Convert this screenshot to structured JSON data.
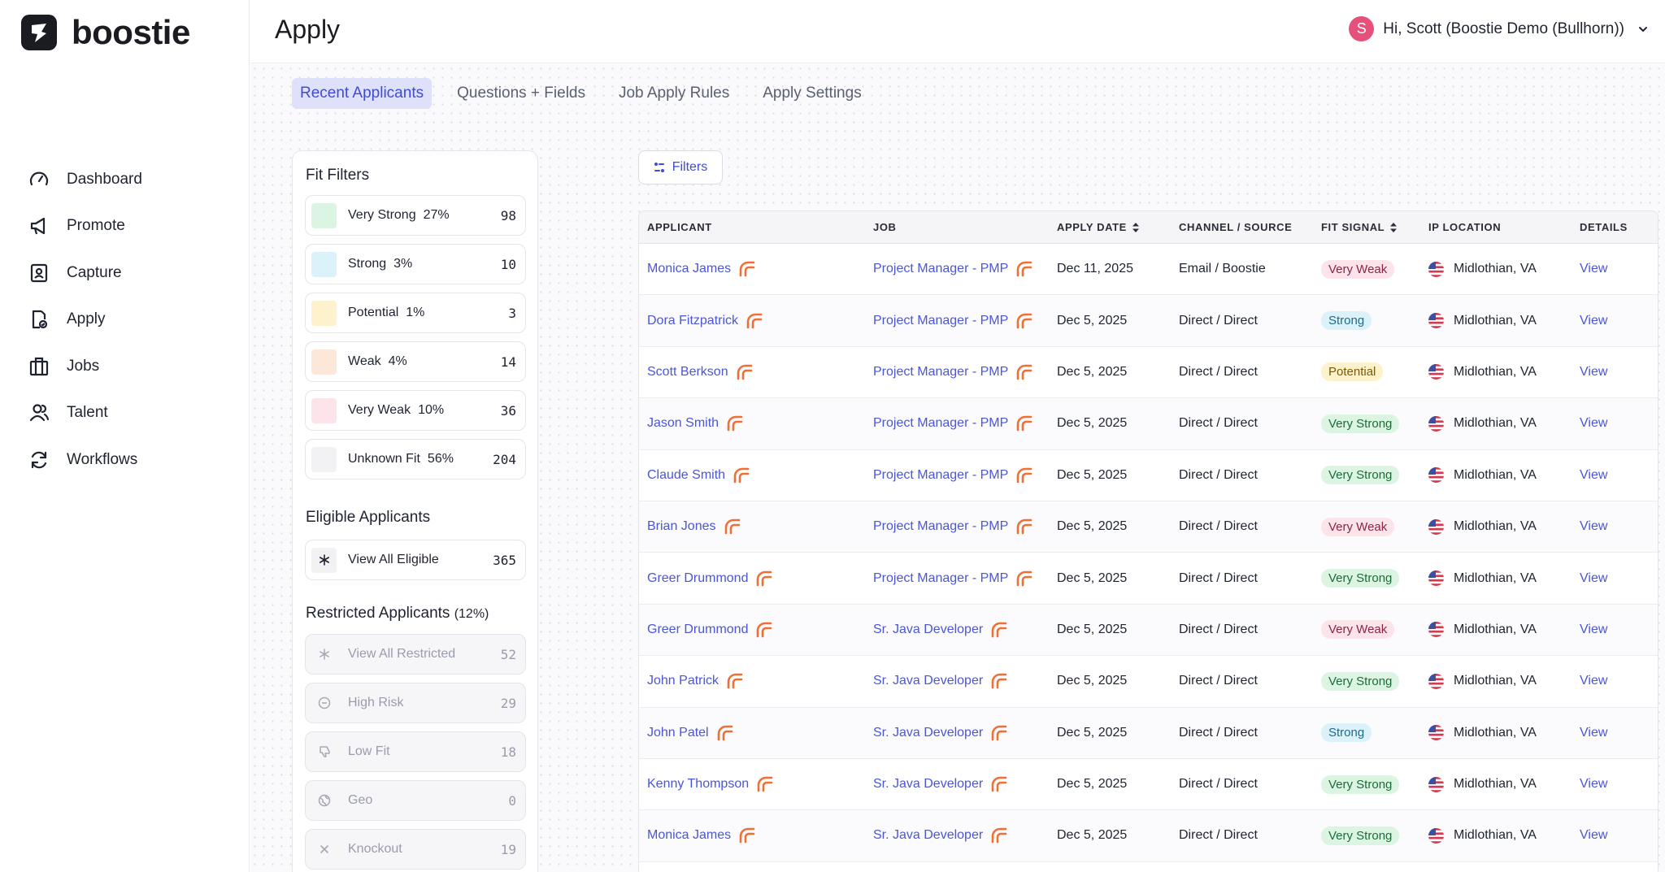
{
  "brand": {
    "name": "boostie"
  },
  "nav": {
    "items": [
      {
        "label": "Dashboard",
        "icon": "gauge-icon"
      },
      {
        "label": "Promote",
        "icon": "megaphone-icon"
      },
      {
        "label": "Capture",
        "icon": "contact-card-icon"
      },
      {
        "label": "Apply",
        "icon": "document-check-icon"
      },
      {
        "label": "Jobs",
        "icon": "building-icon"
      },
      {
        "label": "Talent",
        "icon": "people-icon"
      },
      {
        "label": "Workflows",
        "icon": "refresh-icon"
      }
    ]
  },
  "header": {
    "title": "Apply",
    "avatar_letter": "S",
    "greeting": "Hi, Scott (Boostie Demo (Bullhorn))"
  },
  "tabs": [
    {
      "label": "Recent Applicants",
      "active": true
    },
    {
      "label": "Questions + Fields",
      "active": false
    },
    {
      "label": "Job Apply Rules",
      "active": false
    },
    {
      "label": "Apply Settings",
      "active": false
    }
  ],
  "fit_filters": {
    "title": "Fit Filters",
    "items": [
      {
        "label": "Very Strong",
        "pct": "27%",
        "count": "98",
        "color": "#dcf5e3"
      },
      {
        "label": "Strong",
        "pct": "3%",
        "count": "10",
        "color": "#dcf2fb"
      },
      {
        "label": "Potential",
        "pct": "1%",
        "count": "3",
        "color": "#fdf2cc"
      },
      {
        "label": "Weak",
        "pct": "4%",
        "count": "14",
        "color": "#fde7d9"
      },
      {
        "label": "Very Weak",
        "pct": "10%",
        "count": "36",
        "color": "#fde4ea"
      },
      {
        "label": "Unknown Fit",
        "pct": "56%",
        "count": "204",
        "color": "#f2f2f4"
      }
    ]
  },
  "eligible": {
    "title": "Eligible Applicants",
    "items": [
      {
        "label": "View All Eligible",
        "count": "365"
      }
    ]
  },
  "restricted": {
    "title": "Restricted Applicants",
    "pct": "(12%)",
    "items": [
      {
        "label": "View All Restricted",
        "count": "52",
        "icon": "asterisk-icon"
      },
      {
        "label": "High Risk",
        "count": "29",
        "icon": "minus-circle-icon"
      },
      {
        "label": "Low Fit",
        "count": "18",
        "icon": "thumbs-down-icon"
      },
      {
        "label": "Geo",
        "count": "0",
        "icon": "globe-icon"
      },
      {
        "label": "Knockout",
        "count": "19",
        "icon": "x-icon"
      }
    ]
  },
  "filters_button": {
    "label": "Filters"
  },
  "table": {
    "columns": {
      "applicant": "APPLICANT",
      "job": "JOB",
      "apply_date": "APPLY DATE",
      "channel": "CHANNEL / SOURCE",
      "fit": "FIT SIGNAL",
      "ip": "IP LOCATION",
      "details": "DETAILS"
    },
    "rows": [
      {
        "applicant": "Monica James",
        "job": "Project Manager - PMP",
        "date": "Dec 11, 2025",
        "channel": "Email / Boostie",
        "fit": "Very Weak",
        "location": "Midlothian, VA",
        "details": "View"
      },
      {
        "applicant": "Dora Fitzpatrick",
        "job": "Project Manager - PMP",
        "date": "Dec 5, 2025",
        "channel": "Direct / Direct",
        "fit": "Strong",
        "location": "Midlothian, VA",
        "details": "View"
      },
      {
        "applicant": "Scott Berkson",
        "job": "Project Manager - PMP",
        "date": "Dec 5, 2025",
        "channel": "Direct / Direct",
        "fit": "Potential",
        "location": "Midlothian, VA",
        "details": "View"
      },
      {
        "applicant": "Jason Smith",
        "job": "Project Manager - PMP",
        "date": "Dec 5, 2025",
        "channel": "Direct / Direct",
        "fit": "Very Strong",
        "location": "Midlothian, VA",
        "details": "View"
      },
      {
        "applicant": "Claude Smith",
        "job": "Project Manager - PMP",
        "date": "Dec 5, 2025",
        "channel": "Direct / Direct",
        "fit": "Very Strong",
        "location": "Midlothian, VA",
        "details": "View"
      },
      {
        "applicant": "Brian Jones",
        "job": "Project Manager - PMP",
        "date": "Dec 5, 2025",
        "channel": "Direct / Direct",
        "fit": "Very Weak",
        "location": "Midlothian, VA",
        "details": "View"
      },
      {
        "applicant": "Greer Drummond",
        "job": "Project Manager - PMP",
        "date": "Dec 5, 2025",
        "channel": "Direct / Direct",
        "fit": "Very Strong",
        "location": "Midlothian, VA",
        "details": "View"
      },
      {
        "applicant": "Greer Drummond",
        "job": "Sr. Java Developer",
        "date": "Dec 5, 2025",
        "channel": "Direct / Direct",
        "fit": "Very Weak",
        "location": "Midlothian, VA",
        "details": "View"
      },
      {
        "applicant": "John Patrick",
        "job": "Sr. Java Developer",
        "date": "Dec 5, 2025",
        "channel": "Direct / Direct",
        "fit": "Very Strong",
        "location": "Midlothian, VA",
        "details": "View"
      },
      {
        "applicant": "John Patel",
        "job": "Sr. Java Developer",
        "date": "Dec 5, 2025",
        "channel": "Direct / Direct",
        "fit": "Strong",
        "location": "Midlothian, VA",
        "details": "View"
      },
      {
        "applicant": "Kenny Thompson",
        "job": "Sr. Java Developer",
        "date": "Dec 5, 2025",
        "channel": "Direct / Direct",
        "fit": "Very Strong",
        "location": "Midlothian, VA",
        "details": "View"
      },
      {
        "applicant": "Monica James",
        "job": "Sr. Java Developer",
        "date": "Dec 5, 2025",
        "channel": "Direct / Direct",
        "fit": "Very Strong",
        "location": "Midlothian, VA",
        "details": "View"
      }
    ]
  },
  "fit_badge_colors": {
    "Very Strong": {
      "bg": "#dcf5e3",
      "fg": "#1d6b3a"
    },
    "Strong": {
      "bg": "#dcf2fb",
      "fg": "#1f6a8a"
    },
    "Potential": {
      "bg": "#fdf2cc",
      "fg": "#7a5a00"
    },
    "Weak": {
      "bg": "#fde7d9",
      "fg": "#8a4a1c"
    },
    "Very Weak": {
      "bg": "#fde4ea",
      "fg": "#8c2444"
    }
  },
  "colors": {
    "accent": "#4b56d6",
    "brand_dark": "#1b1c22",
    "bullhorn_orange": "#f06f35"
  }
}
